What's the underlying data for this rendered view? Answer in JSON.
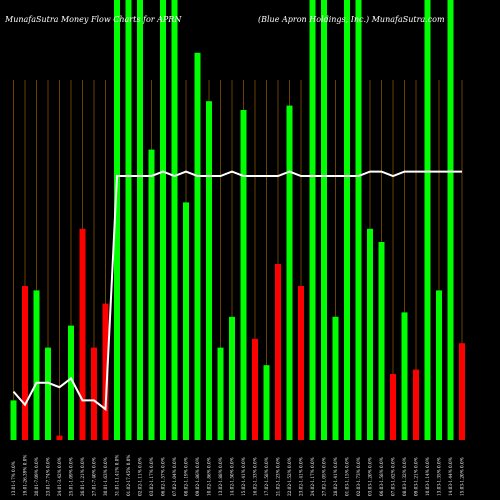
{
  "chart_data": {
    "type": "bar",
    "title_left": "MunafaSutra  Money Flow  Charts for APRN",
    "title_right": "(Blue   Apron   Holdings, Inc.) MunafaSutra.com",
    "xlabel": "",
    "ylabel": "",
    "ylim": [
      0,
      100
    ],
    "grid": "vertical lines, orange",
    "categories": [
      "13.01-17% 0.0%",
      "19.01-26.39% 0.0%",
      "20.01-7.09% 0.0%",
      "23.01-7.74% 0.0%",
      "24.01-3.42% 0.0%",
      "25.01-1.09% 0.0%",
      "26.01-1.21% 0.0%",
      "27.01-7.40% 0.0%",
      "30.01-1.63% 0.0%",
      "31.01-11.41% 0.0%",
      "01.02-17.45% 0.0%",
      "02.02-1.11% 0.0%",
      "03.02-1.17% 0.0%",
      "06.02-1.57% 0.0%",
      "07.02-1.04% 0.0%",
      "08.02-1.19% 0.0%",
      "09.02-1.86% 0.0%",
      "10.02-1.86% 0.0%",
      "13.02-1.88% 0.0%",
      "14.02-1.50% 0.0%",
      "15.02-1.41% 0.0%",
      "16.02-1.33% 0.0%",
      "17.02-1.58% 0.0%",
      "21.02-1.23% 0.0%",
      "22.02-1.52% 0.0%",
      "23.02-1.41% 0.0%",
      "24.02-1.17% 0.0%",
      "27.02-1.05% 0.0%",
      "28.02-1.41% 0.0%",
      "01.03-1.15% 0.0%",
      "02.03-1.73% 0.0%",
      "03.03-1.20% 0.0%",
      "06.03-1.58% 0.0%",
      "07.03-1.62% 0.0%",
      "08.03-1.32% 0.0%",
      "09.03-1.21% 0.0%",
      "10.03-1.14% 0.0%",
      "13.03-1.35% 0.0%",
      "14.03-1.44% 0.0%",
      "15.03-1.20% 0.0%"
    ],
    "bar_values": [
      9,
      35,
      34,
      21,
      1,
      26,
      48,
      21,
      31,
      100,
      100,
      100,
      66,
      100,
      100,
      54,
      88,
      77,
      21,
      28,
      75,
      23,
      17,
      40,
      76,
      35,
      100,
      100,
      28,
      100,
      100,
      48,
      45,
      15,
      29,
      16,
      100,
      34,
      100,
      22
    ],
    "bar_colors": [
      "green",
      "red",
      "green",
      "green",
      "red",
      "green",
      "red",
      "red",
      "red",
      "green",
      "green",
      "green",
      "green",
      "green",
      "green",
      "green",
      "green",
      "green",
      "green",
      "green",
      "green",
      "red",
      "green",
      "red",
      "green",
      "red",
      "green",
      "green",
      "green",
      "green",
      "green",
      "green",
      "green",
      "red",
      "green",
      "red",
      "green",
      "green",
      "green",
      "red"
    ],
    "line_values": [
      11,
      8,
      13,
      13,
      12,
      14,
      9,
      9,
      7,
      60,
      60,
      60,
      60,
      61,
      60,
      61,
      60,
      60,
      60,
      61,
      60,
      60,
      60,
      60,
      61,
      60,
      60,
      60,
      60,
      60,
      60,
      61,
      61,
      60,
      61,
      61,
      61,
      61,
      61,
      61
    ],
    "colors": {
      "up": "#00ff00",
      "down": "#ff0000",
      "line": "#ffffff",
      "grid": "#b06a00",
      "background": "#000000"
    }
  }
}
